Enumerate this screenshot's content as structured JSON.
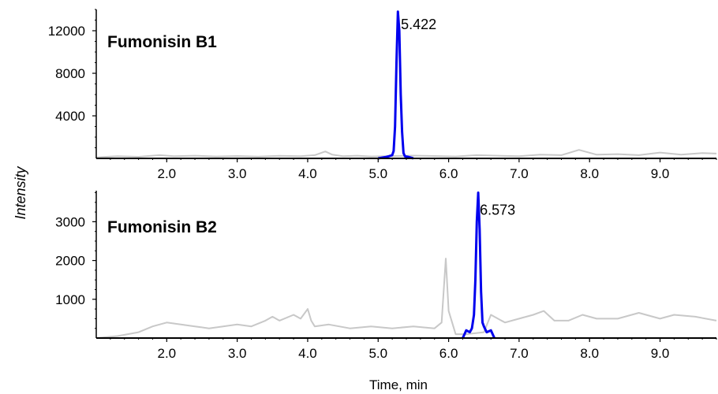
{
  "ylabel": "Intensity",
  "xlabel": "Time, min",
  "colors": {
    "background": "#c8c8c8",
    "peak": "#0000ee",
    "axis": "#000000"
  },
  "chart_data": [
    {
      "type": "line",
      "title": "Fumonisin B1",
      "xlim": [
        1.0,
        9.8
      ],
      "ylim": [
        0,
        14000
      ],
      "x_ticks": [
        "2.0",
        "3.0",
        "4.0",
        "5.0",
        "6.0",
        "7.0",
        "8.0",
        "9.0"
      ],
      "y_ticks": [
        "4000",
        "8000",
        "12000"
      ],
      "peak_label": "5.422",
      "peak_label_x": 5.3,
      "peak_label_y": 12600,
      "series": [
        {
          "role": "background",
          "x": [
            1.0,
            1.3,
            1.6,
            1.9,
            2.1,
            2.4,
            2.7,
            3.0,
            3.3,
            3.6,
            3.9,
            4.1,
            4.25,
            4.35,
            4.5,
            4.7,
            4.9,
            5.1,
            5.5,
            5.8,
            6.1,
            6.4,
            6.7,
            7.0,
            7.3,
            7.6,
            7.85,
            8.1,
            8.4,
            8.7,
            9.0,
            9.3,
            9.6,
            9.8
          ],
          "y": [
            100,
            200,
            150,
            300,
            200,
            250,
            180,
            220,
            160,
            240,
            200,
            300,
            650,
            350,
            200,
            250,
            180,
            200,
            260,
            220,
            180,
            300,
            250,
            200,
            350,
            300,
            800,
            350,
            400,
            300,
            550,
            350,
            500,
            450
          ]
        },
        {
          "role": "peak",
          "x": [
            5.0,
            5.1,
            5.15,
            5.2,
            5.22,
            5.24,
            5.26,
            5.28,
            5.3,
            5.32,
            5.34,
            5.36,
            5.38,
            5.42,
            5.5
          ],
          "y": [
            0,
            120,
            200,
            300,
            700,
            3000,
            9000,
            13800,
            12000,
            6000,
            2500,
            500,
            200,
            150,
            0
          ]
        }
      ]
    },
    {
      "type": "line",
      "title": "Fumonisin B2",
      "xlim": [
        1.0,
        9.8
      ],
      "ylim": [
        0,
        3800
      ],
      "x_ticks": [
        "2.0",
        "3.0",
        "4.0",
        "5.0",
        "6.0",
        "7.0",
        "8.0",
        "9.0"
      ],
      "y_ticks": [
        "1000",
        "2000",
        "3000"
      ],
      "peak_label": "6.573",
      "peak_label_x": 6.42,
      "peak_label_y": 3300,
      "series": [
        {
          "role": "background",
          "x": [
            1.0,
            1.3,
            1.6,
            1.8,
            2.0,
            2.2,
            2.4,
            2.6,
            2.8,
            3.0,
            3.2,
            3.4,
            3.5,
            3.6,
            3.8,
            3.9,
            4.0,
            4.05,
            4.1,
            4.3,
            4.6,
            4.9,
            5.2,
            5.5,
            5.8,
            5.9,
            5.96,
            6.0,
            6.1,
            6.25,
            6.5,
            6.6,
            6.8,
            7.0,
            7.2,
            7.35,
            7.5,
            7.7,
            7.9,
            8.1,
            8.4,
            8.7,
            9.0,
            9.2,
            9.5,
            9.8
          ],
          "y": [
            0,
            50,
            150,
            300,
            400,
            350,
            300,
            250,
            300,
            350,
            300,
            450,
            550,
            450,
            600,
            500,
            750,
            450,
            300,
            350,
            250,
            300,
            250,
            300,
            250,
            400,
            2050,
            700,
            100,
            100,
            150,
            600,
            400,
            500,
            600,
            700,
            450,
            450,
            600,
            500,
            500,
            650,
            500,
            600,
            550,
            450
          ]
        },
        {
          "role": "peak",
          "x": [
            6.2,
            6.25,
            6.3,
            6.33,
            6.36,
            6.38,
            6.4,
            6.42,
            6.44,
            6.46,
            6.48,
            6.5,
            6.54,
            6.6,
            6.65
          ],
          "y": [
            0,
            200,
            150,
            250,
            600,
            1500,
            3000,
            3750,
            2800,
            1200,
            400,
            300,
            150,
            200,
            0
          ]
        }
      ]
    }
  ]
}
